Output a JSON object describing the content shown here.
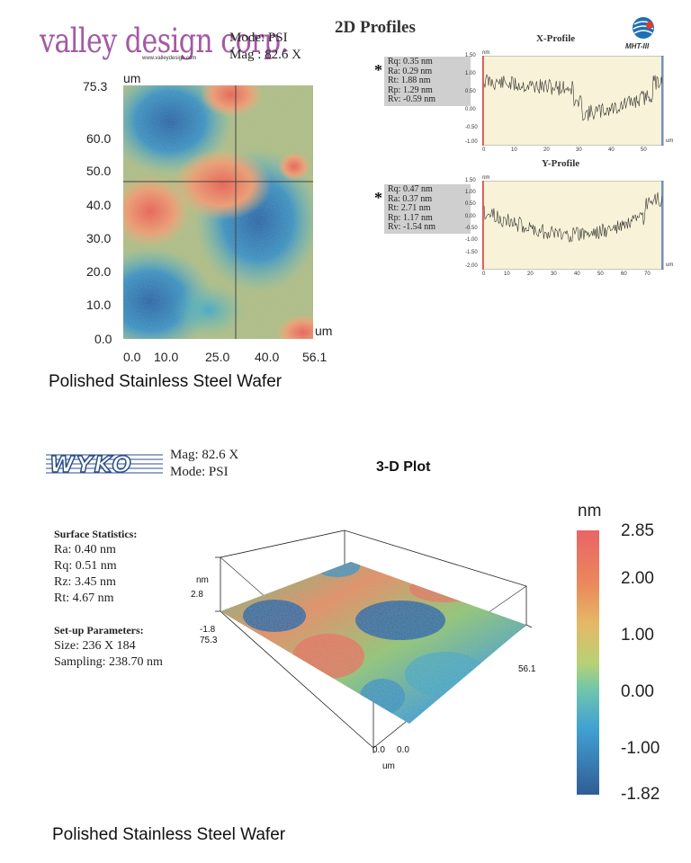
{
  "logo": {
    "name": "valley design corp.",
    "url": "www.valleydesign.com"
  },
  "top_meta": {
    "mode": "Mode: PSI",
    "mag": "Mag : 82.6 X"
  },
  "profiles_title": "2D Profiles",
  "mht_label": "MHT-III",
  "contour": {
    "unit_top": "um",
    "unit_right": "um",
    "y_ticks": [
      "75.3",
      "60.0",
      "50.0",
      "40.0",
      "30.0",
      "20.0",
      "10.0",
      "0.0"
    ],
    "x_ticks": [
      "0.0",
      "10.0",
      "25.0",
      "40.0",
      "56.1"
    ],
    "caption": "Polished Stainless Steel Wafer"
  },
  "x_profile": {
    "title": "X-Profile",
    "asterisk": "*",
    "stats": [
      "Rq:  0.35 nm",
      "Ra:  0.29 nm",
      "Rt:  1.88 nm",
      "Rp:  1.29 nm",
      "Rv:  -0.59 nm"
    ],
    "unit_y": "nm",
    "unit_x": "um",
    "y_ticks": [
      "1.50",
      "1.00",
      "0.50",
      "0.00",
      "-0.50",
      "-1.00"
    ],
    "x_ticks": [
      "0",
      "10",
      "20",
      "30",
      "40",
      "50"
    ]
  },
  "y_profile": {
    "title": "Y-Profile",
    "asterisk": "*",
    "stats": [
      "Rq:  0.47 nm",
      "Ra:  0.37 nm",
      "Rt:  2.71 nm",
      "Rp:  1.17 nm",
      "Rv:  -1.54 nm"
    ],
    "unit_y": "nm",
    "unit_x": "um",
    "y_ticks": [
      "1.50",
      "1.00",
      "0.50",
      "0.00",
      "-0.50",
      "-1.00",
      "-1.50",
      "-2.00"
    ],
    "x_ticks": [
      "0",
      "10",
      "20",
      "30",
      "40",
      "50",
      "60",
      "70"
    ]
  },
  "wyko": {
    "logo": "WYKO",
    "mag": "Mag:  82.6 X",
    "mode": "Mode:  PSI",
    "plot_title": "3-D Plot"
  },
  "surface_stats": {
    "heading": "Surface Statistics:",
    "items": [
      "Ra:  0.40 nm",
      "Rq:  0.51 nm",
      "Rz:  3.45 nm",
      "Rt:  4.67 nm"
    ]
  },
  "setup": {
    "heading": "Set-up Parameters:",
    "items": [
      "Size: 236 X 184",
      "Sampling:  238.70 nm"
    ]
  },
  "plot3d_axes": {
    "z_unit": "nm",
    "z_top": "2.8",
    "z_bottom": "-1.8",
    "y_max": "75.3",
    "x_max": "56.1",
    "origin_left": "0.0",
    "origin_right": "0.0",
    "unit": "um"
  },
  "colorbar": {
    "unit": "nm",
    "labels": [
      "2.85",
      "2.00",
      "1.00",
      "0.00",
      "-1.00",
      "-1.82"
    ]
  },
  "bottom_caption": "Polished Stainless Steel Wafer"
}
